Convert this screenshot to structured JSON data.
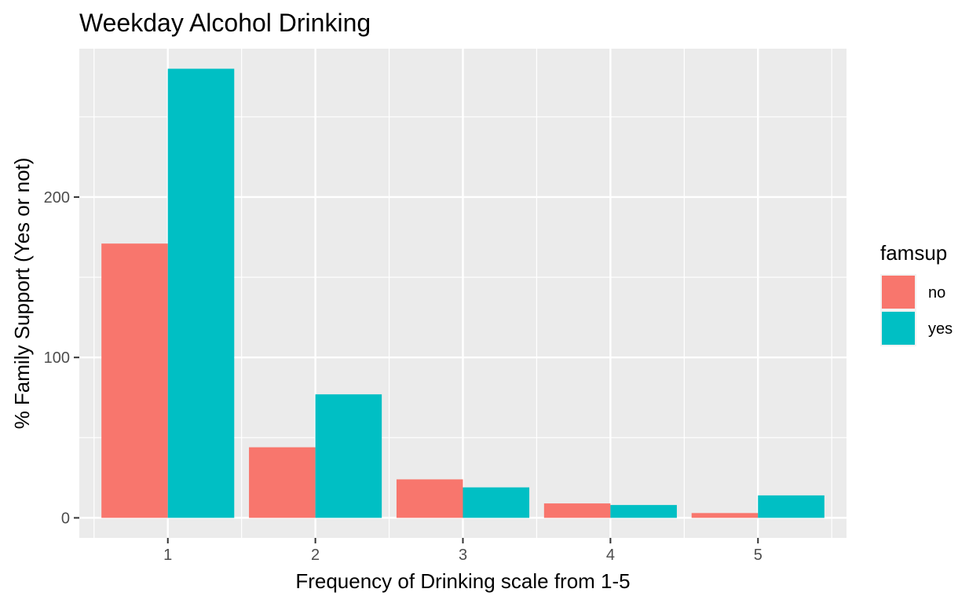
{
  "chart_data": {
    "type": "bar",
    "title": "Weekday Alcohol Drinking",
    "xlabel": "Frequency of Drinking scale from 1-5",
    "ylabel": "% Family Support (Yes or not)",
    "categories": [
      "1",
      "2",
      "3",
      "4",
      "5"
    ],
    "series": [
      {
        "name": "no",
        "color": "#F8766D",
        "values": [
          171,
          44,
          24,
          9,
          3
        ]
      },
      {
        "name": "yes",
        "color": "#00BFC4",
        "values": [
          280,
          77,
          19,
          8,
          14
        ]
      }
    ],
    "ylim": [
      -12.5,
      292.5
    ],
    "yticks": [
      0,
      100,
      200
    ],
    "ytick_labels": [
      "0",
      "100",
      "200"
    ],
    "grid": true,
    "legend": {
      "title": "famsup",
      "position": "right"
    },
    "panel_background": "#EBEBEB",
    "grid_color": "#FFFFFF"
  }
}
